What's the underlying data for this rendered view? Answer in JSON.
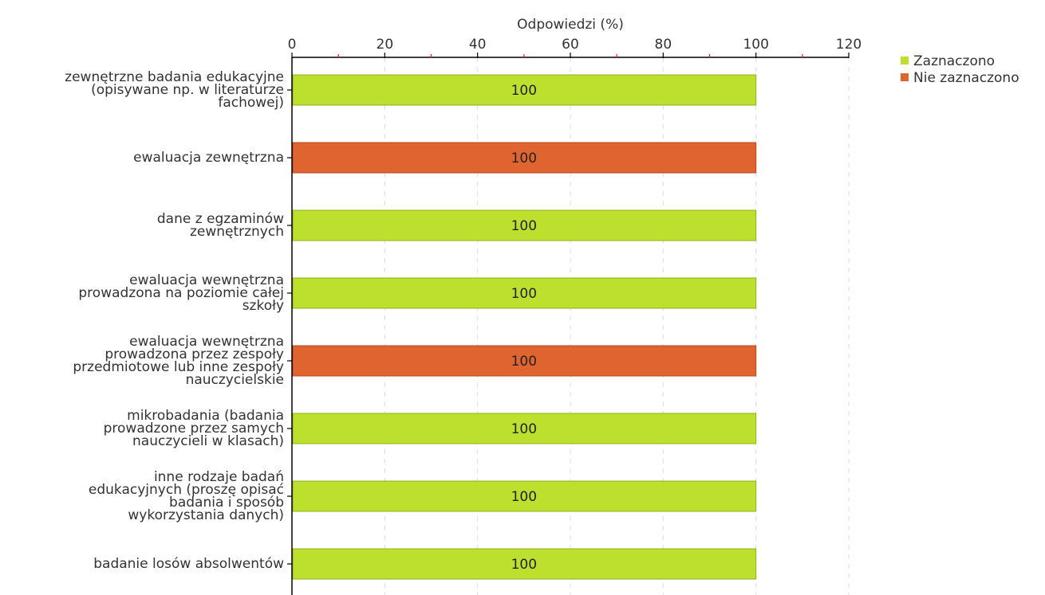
{
  "chart_data": {
    "type": "bar",
    "orientation": "horizontal",
    "xlabel": "Odpowiedzi (%)",
    "xlim": [
      0,
      120
    ],
    "x_ticks": [
      0,
      20,
      40,
      60,
      80,
      100,
      120
    ],
    "grid": true,
    "legend_position": "top-right",
    "legend": [
      {
        "name": "Zaznaczono",
        "color": "#bde02e"
      },
      {
        "name": "Nie zaznaczono",
        "color": "#e06430"
      }
    ],
    "categories": [
      {
        "lines": [
          "zewnętrzne badania edukacyjne",
          "(opisywane np. w literaturze",
          "fachowej)"
        ],
        "value": 100,
        "series": "Zaznaczono",
        "label": "100"
      },
      {
        "lines": [
          "ewaluacja zewnętrzna"
        ],
        "value": 100,
        "series": "Nie zaznaczono",
        "label": "100"
      },
      {
        "lines": [
          "dane z egzaminów",
          "zewnętrznych"
        ],
        "value": 100,
        "series": "Zaznaczono",
        "label": "100"
      },
      {
        "lines": [
          "ewaluacja wewnętrzna",
          "prowadzona na poziomie całej",
          "szkoły"
        ],
        "value": 100,
        "series": "Zaznaczono",
        "label": "100"
      },
      {
        "lines": [
          "ewaluacja wewnętrzna",
          "prowadzona przez zespoły",
          "przedmiotowe lub inne zespoły",
          "nauczycielskie"
        ],
        "value": 100,
        "series": "Nie zaznaczono",
        "label": "100"
      },
      {
        "lines": [
          "mikrobadania (badania",
          "prowadzone przez samych",
          "nauczycieli w klasach)"
        ],
        "value": 100,
        "series": "Zaznaczono",
        "label": "100"
      },
      {
        "lines": [
          "inne rodzaje badań",
          "edukacyjnych (proszę opisać",
          "badania i sposób",
          "wykorzystania danych)"
        ],
        "value": 100,
        "series": "Zaznaczono",
        "label": "100"
      },
      {
        "lines": [
          "badanie losów absolwentów"
        ],
        "value": 100,
        "series": "Zaznaczono",
        "label": "100"
      }
    ]
  }
}
